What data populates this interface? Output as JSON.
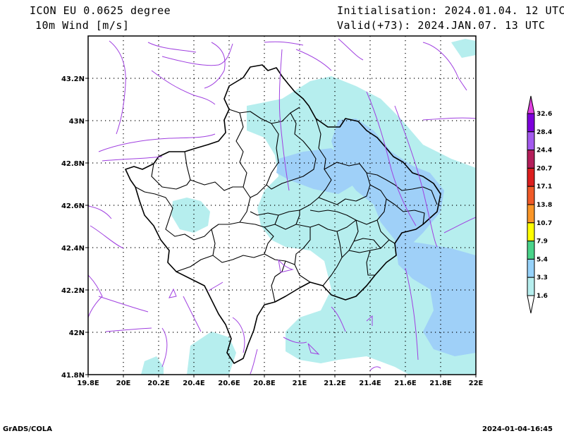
{
  "header": {
    "model": "ICON EU 0.0625 degree",
    "variable": "10m Wind [m/s]",
    "init": "Initialisation: 2024.01.04. 12 UTC",
    "valid": "Valid(+73): 2024.JAN.07. 13 UTC"
  },
  "map": {
    "lat_ticks": [
      "41.8N",
      "42N",
      "42.2N",
      "42.4N",
      "42.6N",
      "42.8N",
      "43N",
      "43.2N"
    ],
    "lon_ticks": [
      "19.8E",
      "20E",
      "20.2E",
      "20.4E",
      "20.6E",
      "20.8E",
      "21E",
      "21.2E",
      "21.4E",
      "21.6E",
      "21.8E",
      "22E"
    ],
    "lat_range": [
      41.8,
      43.4
    ],
    "lon_range": [
      19.8,
      22.0
    ],
    "shading_colors": {
      "light": "#b6eeee",
      "mid": "#9fd0f8"
    },
    "streamline_color": "#a040e0"
  },
  "colorbar": {
    "levels": [
      "32.6",
      "28.4",
      "24.4",
      "20.7",
      "17.1",
      "13.8",
      "10.7",
      "7.9",
      "5.4",
      "3.3",
      "1.6"
    ],
    "colors": [
      "#7d00dc",
      "#a35aef",
      "#b41e5a",
      "#dc1e1e",
      "#f05a28",
      "#fa9628",
      "#ffff00",
      "#4ad48a",
      "#96d2fa",
      "#b6eeee"
    ]
  },
  "footer": {
    "left": "GrADS/COLA",
    "right": "2024-01-04-16:45"
  }
}
